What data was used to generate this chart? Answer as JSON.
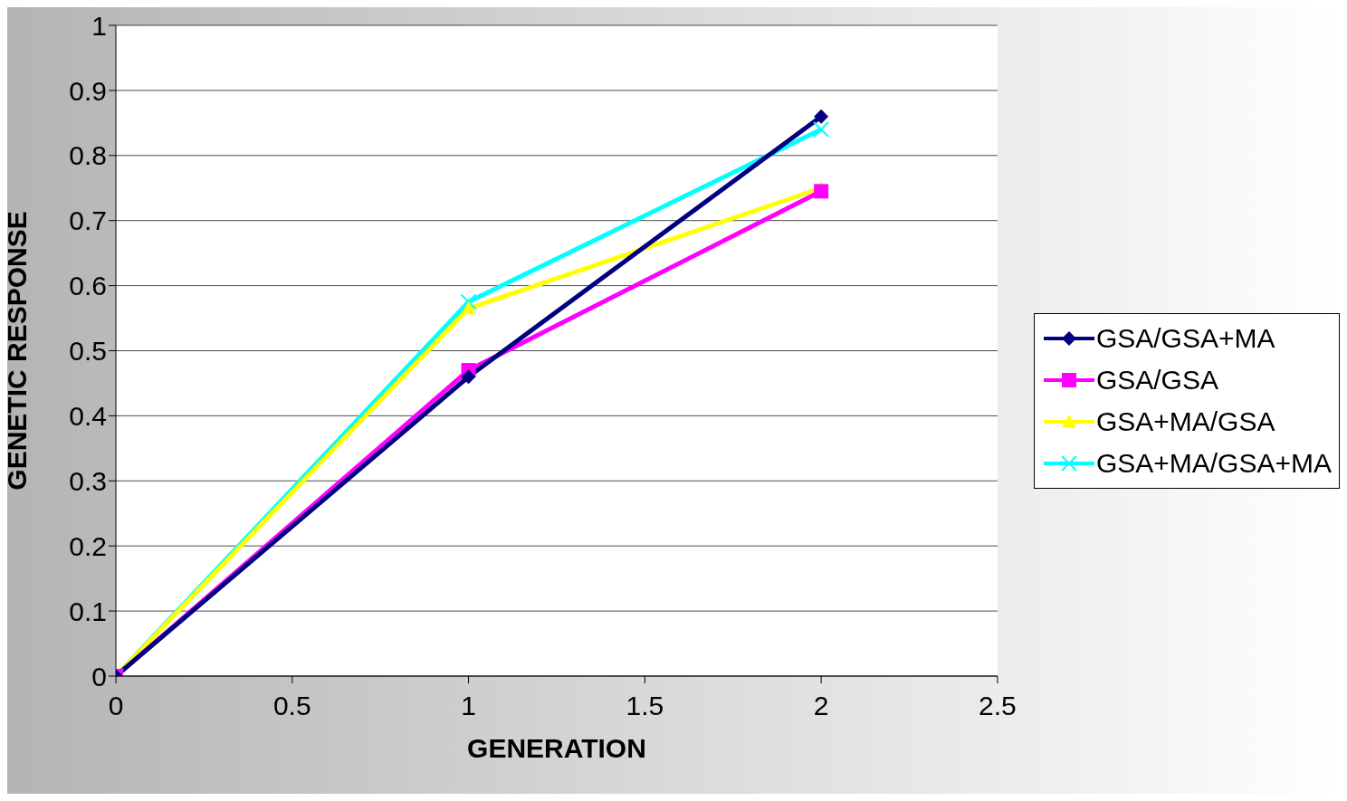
{
  "chart_data": {
    "type": "line",
    "xlabel": "GENERATION",
    "ylabel": "GENETIC RESPONSE",
    "x": [
      0,
      1,
      2
    ],
    "series": [
      {
        "name": "GSA/GSA+MA",
        "color": "#000080",
        "marker": "diamond",
        "values": [
          0,
          0.46,
          0.86
        ]
      },
      {
        "name": "GSA/GSA",
        "color": "#ff00ff",
        "marker": "square",
        "values": [
          0,
          0.47,
          0.745
        ]
      },
      {
        "name": "GSA+MA/GSA",
        "color": "#ffff00",
        "marker": "triangle",
        "values": [
          0,
          0.565,
          0.75
        ]
      },
      {
        "name": "GSA+MA/GSA+MA",
        "color": "#00ffff",
        "marker": "cross",
        "values": [
          0,
          0.575,
          0.84
        ]
      }
    ],
    "xlim": [
      0,
      2.5
    ],
    "xticks": [
      0,
      0.5,
      1,
      1.5,
      2,
      2.5
    ],
    "ylim": [
      0,
      1
    ],
    "yticks": [
      0,
      0.1,
      0.2,
      0.3,
      0.4,
      0.5,
      0.6,
      0.7,
      0.8,
      0.9,
      1
    ],
    "grid": "y",
    "legend": "right",
    "line_style": "solid"
  }
}
